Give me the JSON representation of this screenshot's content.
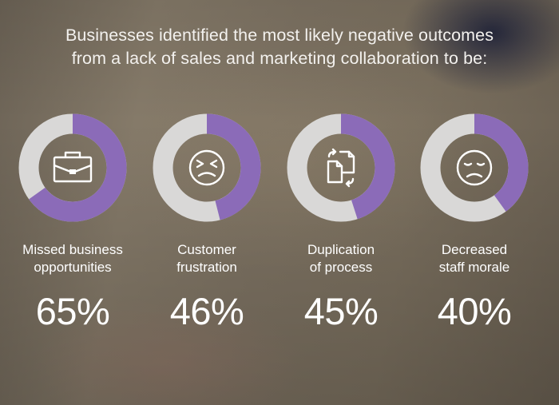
{
  "headline": {
    "line1": "Businesses identified the most likely negative outcomes",
    "line2": "from a lack of sales and marketing collaboration to be:"
  },
  "colors": {
    "accent": "#8b6bb8",
    "track": "#d9d8d7",
    "text": "#ffffff"
  },
  "chart_data": {
    "type": "donut",
    "title": "Businesses identified the most likely negative outcomes from a lack of sales and marketing collaboration to be:",
    "unit": "%",
    "items": [
      {
        "label_lines": [
          "Missed business",
          "opportunities"
        ],
        "value": 65,
        "display": "65%",
        "icon": "briefcase-icon"
      },
      {
        "label_lines": [
          "Customer",
          "frustration"
        ],
        "value": 46,
        "display": "46%",
        "icon": "frustrated-face-icon"
      },
      {
        "label_lines": [
          "Duplication",
          "of process"
        ],
        "value": 45,
        "display": "45%",
        "icon": "duplicate-documents-icon"
      },
      {
        "label_lines": [
          "Decreased",
          "staff morale"
        ],
        "value": 40,
        "display": "40%",
        "icon": "sad-face-icon"
      }
    ]
  }
}
